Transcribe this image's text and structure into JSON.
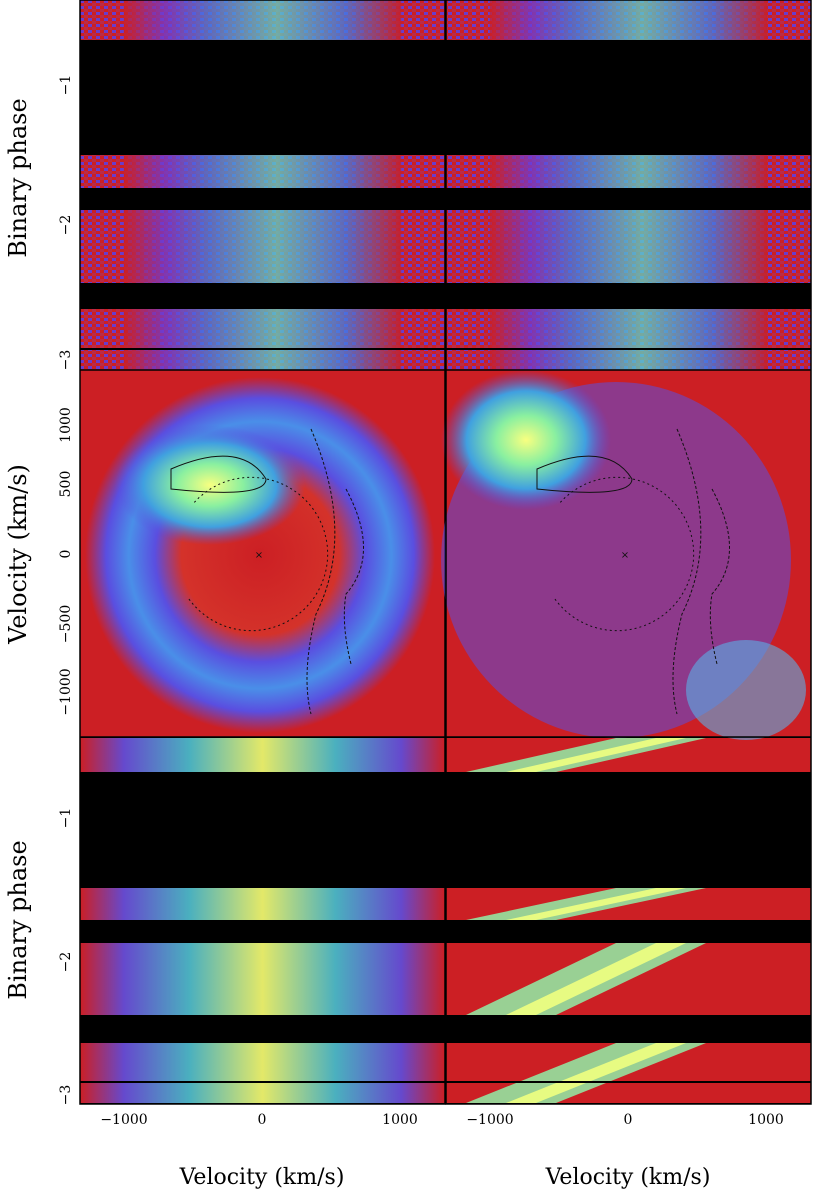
{
  "chart_data": [
    {
      "type": "heatmap",
      "panel": "observed trailed spectra (left, top)",
      "ylabel": "Binary phase",
      "yticks": [
        "−1",
        "−2",
        "−3"
      ],
      "phase_blocks": [
        [
          -0.55,
          -0.75
        ],
        [
          -1.35,
          -1.55
        ],
        [
          -1.7,
          -2.3
        ],
        [
          -2.5,
          -3.1
        ]
      ],
      "xlim": [
        -1300,
        1300
      ]
    },
    {
      "type": "heatmap",
      "panel": "Doppler tomogram (left)",
      "ylabel": "Velocity (km/s)",
      "yticks": [
        "1000",
        "500",
        "0",
        "−500",
        "−1000"
      ],
      "ylim": [
        -1300,
        1300
      ]
    },
    {
      "type": "heatmap",
      "panel": "reconstructed trailed spectra (left, bottom)",
      "ylabel": "Binary phase",
      "yticks": [
        "−1",
        "−2",
        "−3"
      ],
      "xlabel": "Velocity (km/s)",
      "xticks": [
        "−1000",
        "0",
        "1000"
      ],
      "xlim": [
        -1300,
        1300
      ]
    },
    {
      "type": "heatmap",
      "panel": "observed trailed spectra (right, top)"
    },
    {
      "type": "heatmap",
      "panel": "Doppler tomogram (right)"
    },
    {
      "type": "heatmap",
      "panel": "reconstructed trailed spectra (right, bottom)",
      "xlabel": "Velocity (km/s)",
      "xticks": [
        "−1000",
        "0",
        "1000"
      ]
    }
  ],
  "colors": {
    "background": "#cc1f24",
    "mid": "#5a4ee0",
    "peak": "#f2ff6a"
  },
  "labels": {
    "ylabel_top": "Binary phase",
    "ylabel_mid": "Velocity (km/s)",
    "ylabel_bot": "Binary phase",
    "xlabel_left": "Velocity (km/s)",
    "xlabel_right": "Velocity (km/s)"
  }
}
